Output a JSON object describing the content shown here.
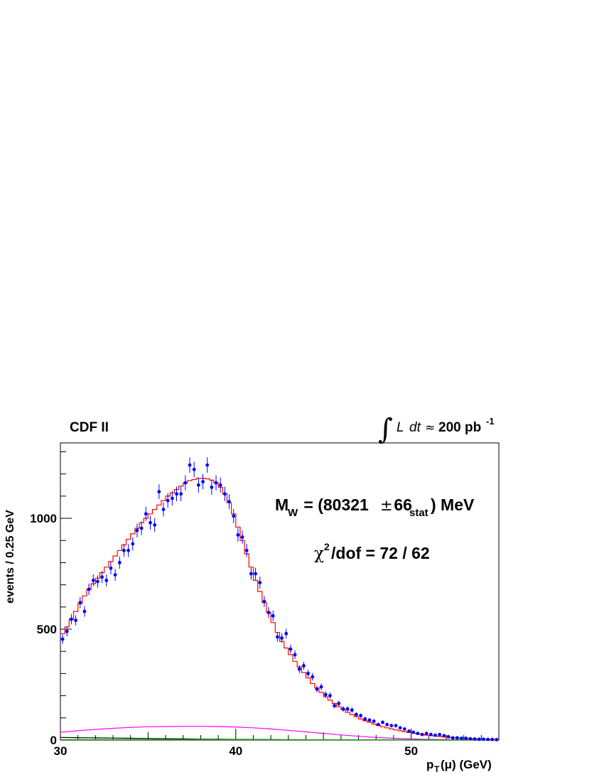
{
  "chart_data": {
    "type": "scatter",
    "experiment_label": "CDF II",
    "luminosity": {
      "integral": "∫",
      "L": "L",
      "dt": "dt",
      "approx": "≈",
      "value": "200 pb",
      "exponent": "-1"
    },
    "xlabel": {
      "main": "p",
      "sub": "T",
      "paren": "(μ) (GeV)"
    },
    "ylabel": "events / 0.25 GeV",
    "xlim": [
      30,
      55
    ],
    "ylim": [
      0,
      1340
    ],
    "x_ticks": [
      30,
      40,
      50
    ],
    "y_ticks": [
      0,
      500,
      1000
    ],
    "grid": false,
    "annotations": {
      "mass": {
        "prefix": "M",
        "sub": "W",
        "mid": " = (80321",
        "pm": "±",
        "val": " 66",
        "sub2": "stat",
        "suffix": ") MeV"
      },
      "chi2": {
        "chi": "χ",
        "sup": "2",
        "text": "/dof = 72 / 62"
      }
    },
    "series": [
      {
        "type": "points_with_errors",
        "color": "#0000ff",
        "x": [
          30.125,
          30.375,
          30.625,
          30.875,
          31.125,
          31.375,
          31.625,
          31.875,
          32.125,
          32.375,
          32.625,
          32.875,
          33.125,
          33.375,
          33.625,
          33.875,
          34.125,
          34.375,
          34.625,
          34.875,
          35.125,
          35.375,
          35.625,
          35.875,
          36.125,
          36.375,
          36.625,
          36.875,
          37.125,
          37.375,
          37.625,
          37.875,
          38.125,
          38.375,
          38.625,
          38.875,
          39.125,
          39.375,
          39.625,
          39.875,
          40.125,
          40.375,
          40.625,
          40.875,
          41.125,
          41.375,
          41.625,
          41.875,
          42.125,
          42.375,
          42.625,
          42.875,
          43.125,
          43.375,
          43.625,
          43.875,
          44.125,
          44.375,
          44.625,
          44.875,
          45.125,
          45.375,
          45.625,
          45.875,
          46.125,
          46.375,
          46.625,
          46.875,
          47.125,
          47.375,
          47.625,
          47.875,
          48.125,
          48.375,
          48.625,
          48.875,
          49.125,
          49.375,
          49.625,
          49.875,
          50.125,
          50.375,
          50.625,
          50.875,
          51.125,
          51.375,
          51.625,
          51.875,
          52.125,
          52.375,
          52.625,
          52.875,
          53.125,
          53.375,
          53.625,
          53.875,
          54.125,
          54.375,
          54.625,
          54.875
        ],
        "y": [
          455,
          490,
          545,
          540,
          620,
          580,
          680,
          720,
          715,
          735,
          720,
          775,
          745,
          800,
          855,
          855,
          885,
          945,
          955,
          1020,
          980,
          970,
          1120,
          1040,
          1080,
          1090,
          1110,
          1110,
          1160,
          1240,
          1220,
          1150,
          1165,
          1240,
          1140,
          1160,
          1150,
          1110,
          1075,
          1010,
          925,
          915,
          855,
          750,
          750,
          710,
          625,
          575,
          560,
          465,
          460,
          480,
          410,
          385,
          320,
          335,
          300,
          285,
          230,
          240,
          205,
          200,
          155,
          165,
          140,
          140,
          135,
          115,
          110,
          95,
          90,
          85,
          70,
          80,
          70,
          65,
          65,
          55,
          50,
          40,
          35,
          30,
          25,
          30,
          25,
          22,
          25,
          20,
          15,
          10,
          10,
          8,
          8,
          6,
          5,
          4,
          4,
          3,
          3,
          2
        ],
        "err": [
          21,
          22,
          23,
          23,
          25,
          24,
          26,
          27,
          27,
          27,
          27,
          28,
          27,
          28,
          29,
          29,
          30,
          31,
          31,
          32,
          31,
          31,
          33,
          32,
          33,
          33,
          33,
          33,
          34,
          35,
          35,
          34,
          34,
          35,
          34,
          34,
          34,
          33,
          33,
          32,
          30,
          30,
          29,
          27,
          27,
          27,
          25,
          24,
          24,
          22,
          21,
          22,
          20,
          20,
          18,
          18,
          17,
          17,
          15,
          15,
          14,
          14,
          12,
          13,
          12,
          12,
          12,
          11,
          10,
          10,
          9,
          9,
          8,
          9,
          8,
          8,
          8,
          7,
          7,
          6,
          6,
          5,
          5,
          5,
          5,
          5,
          5,
          4,
          4,
          3,
          3,
          3,
          3,
          2,
          2,
          2,
          2,
          2,
          2,
          1
        ]
      },
      {
        "type": "step",
        "color": "#ff0000",
        "y": [
          480,
          510,
          545,
          580,
          615,
          650,
          680,
          705,
          730,
          755,
          780,
          805,
          830,
          855,
          880,
          905,
          930,
          955,
          980,
          1000,
          1020,
          1040,
          1060,
          1080,
          1100,
          1115,
          1130,
          1145,
          1160,
          1170,
          1175,
          1180,
          1180,
          1178,
          1172,
          1160,
          1140,
          1110,
          1070,
          1020,
          960,
          900,
          840,
          780,
          720,
          670,
          620,
          575,
          530,
          485,
          445,
          415,
          385,
          355,
          330,
          305,
          280,
          255,
          235,
          215,
          195,
          180,
          165,
          150,
          138,
          125,
          115,
          105,
          95,
          87,
          80,
          72,
          66,
          60,
          55,
          50,
          46,
          42,
          38,
          34,
          31,
          28,
          25,
          22,
          20,
          18,
          16,
          14,
          12,
          10,
          9,
          8,
          7,
          6,
          5,
          4,
          3,
          3,
          2,
          2
        ]
      },
      {
        "type": "curve",
        "color": "#ff00ff",
        "x": [
          30,
          31,
          32,
          33,
          34,
          35,
          36,
          37,
          38,
          39,
          40,
          41,
          42,
          43,
          44,
          45,
          46,
          47,
          48,
          49,
          50,
          51,
          52,
          53,
          54,
          55
        ],
        "y": [
          35,
          42,
          48,
          53,
          57,
          60,
          61,
          62,
          62,
          61,
          59,
          55,
          50,
          44,
          37,
          30,
          23,
          17,
          12,
          8,
          5,
          3,
          2,
          1,
          0.5,
          0.2
        ]
      },
      {
        "type": "curve",
        "color": "#000000",
        "x": [
          30,
          31,
          32,
          33,
          34,
          35,
          36,
          37,
          38,
          39,
          40,
          41,
          42,
          43,
          44,
          45,
          46,
          47,
          48,
          49,
          50,
          51,
          52,
          53,
          54,
          55
        ],
        "y": [
          12,
          11,
          10,
          9,
          8,
          7,
          6,
          5,
          4,
          3.5,
          3,
          2.5,
          2,
          1.5,
          1.2,
          1,
          0.8,
          0.6,
          0.4,
          0.3,
          0.2,
          0.1,
          0.1,
          0.05,
          0.02,
          0
        ]
      },
      {
        "type": "curve",
        "color": "#00aa00",
        "x": [
          30,
          35,
          40,
          45,
          50,
          55
        ],
        "y": [
          2,
          2,
          2,
          1.5,
          1,
          0.5
        ]
      }
    ]
  }
}
